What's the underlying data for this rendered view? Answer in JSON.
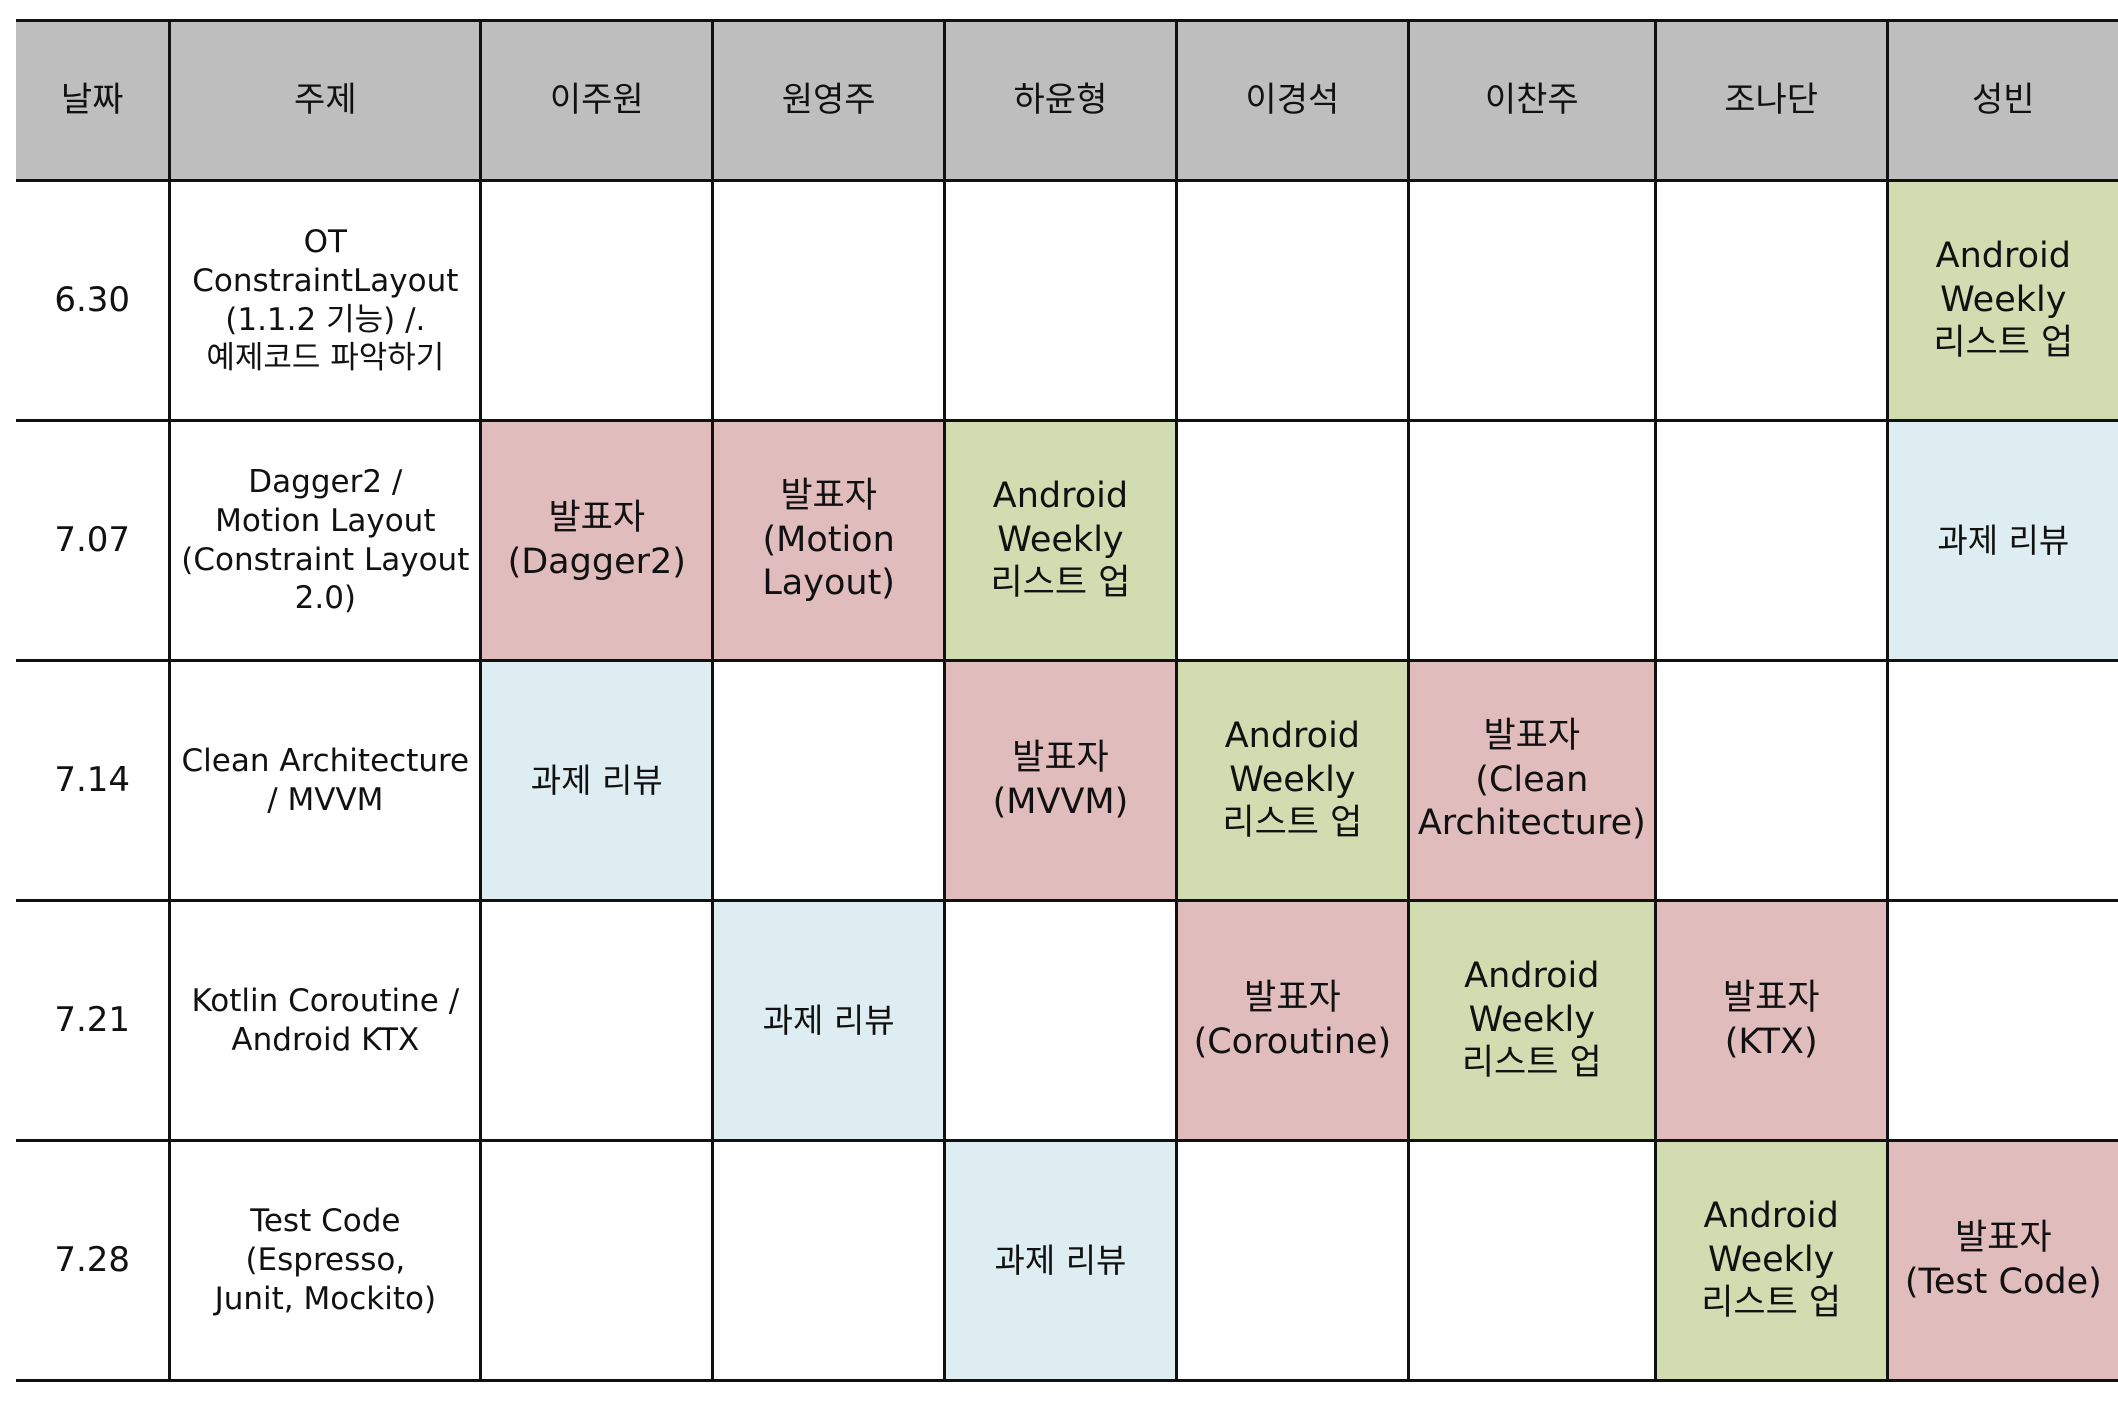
{
  "columns": [
    "날짜",
    "주제",
    "이주원",
    "원영주",
    "하윤형",
    "이경석",
    "이찬주",
    "조나단",
    "성빈"
  ],
  "rows": [
    {
      "date": "6.30",
      "topic": "OT\nConstraintLayout\n(1.1.2 기능) /.\n예제코드 파악하기",
      "cells": [
        "",
        "",
        "",
        "",
        "",
        "",
        "Android\nWeekly\n리스트 업"
      ]
    },
    {
      "date": "7.07",
      "topic": "Dagger2 /\nMotion Layout\n(Constraint Layout\n2.0)",
      "cells": [
        "발표자\n(Dagger2)",
        "발표자\n(Motion\nLayout)",
        "Android\nWeekly\n리스트 업",
        "",
        "",
        "",
        "과제 리뷰"
      ]
    },
    {
      "date": "7.14",
      "topic": "Clean Architecture\n/ MVVM",
      "cells": [
        "과제 리뷰",
        "",
        "발표자\n(MVVM)",
        "Android\nWeekly\n리스트 업",
        "발표자\n(Clean\nArchitecture)",
        "",
        ""
      ]
    },
    {
      "date": "7.21",
      "topic": "Kotlin Coroutine /\nAndroid KTX",
      "cells": [
        "",
        "과제 리뷰",
        "",
        "발표자\n(Coroutine)",
        "Android\nWeekly\n리스트 업",
        "발표자\n(KTX)",
        ""
      ]
    },
    {
      "date": "7.28",
      "topic": "Test Code\n(Espresso,\nJunit, Mockito)",
      "cells": [
        "",
        "",
        "과제 리뷰",
        "",
        "",
        "Android\nWeekly\n리스트 업",
        "발표자\n(Test Code)"
      ]
    }
  ],
  "colors": {
    "header": "#bebebe",
    "presenter": "#e0bcbc",
    "weekly": "#d1ddb1",
    "review": "#deedf2",
    "border": "#111111"
  }
}
